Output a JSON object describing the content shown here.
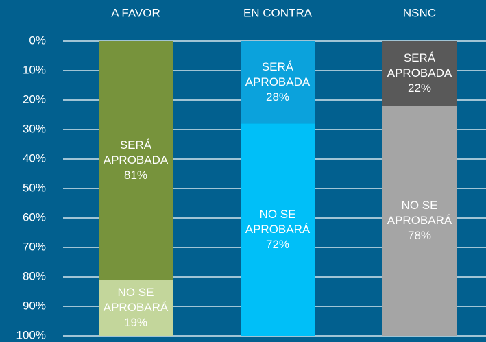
{
  "chart_data": {
    "type": "stacked_bar",
    "categories": [
      "A FAVOR",
      "EN CONTRA",
      "NSNC"
    ],
    "series": [
      {
        "name": "SERÁ APROBADA",
        "colors": [
          "#77933c",
          "#0ba2dc",
          "#595959"
        ],
        "values": [
          81,
          28,
          22
        ],
        "value_labels": [
          "81%",
          "28%",
          "22%"
        ]
      },
      {
        "name": "NO SE APROBARÁ",
        "colors": [
          "#c3d69b",
          "#00bff8",
          "#a5a5a5"
        ],
        "values": [
          19,
          72,
          78
        ],
        "value_labels": [
          "19%",
          "72%",
          "78%"
        ]
      }
    ],
    "ylim": [
      0,
      100
    ],
    "y_inverted": true,
    "yticks": [
      {
        "value": 0,
        "label": "0%"
      },
      {
        "value": 10,
        "label": "10%"
      },
      {
        "value": 20,
        "label": "20%"
      },
      {
        "value": 30,
        "label": "30%"
      },
      {
        "value": 40,
        "label": "40%"
      },
      {
        "value": 50,
        "label": "50%"
      },
      {
        "value": 60,
        "label": "60%"
      },
      {
        "value": 70,
        "label": "70%"
      },
      {
        "value": 80,
        "label": "80%"
      },
      {
        "value": 90,
        "label": "90%"
      },
      {
        "value": 100,
        "label": "100%"
      }
    ],
    "grid": true
  }
}
